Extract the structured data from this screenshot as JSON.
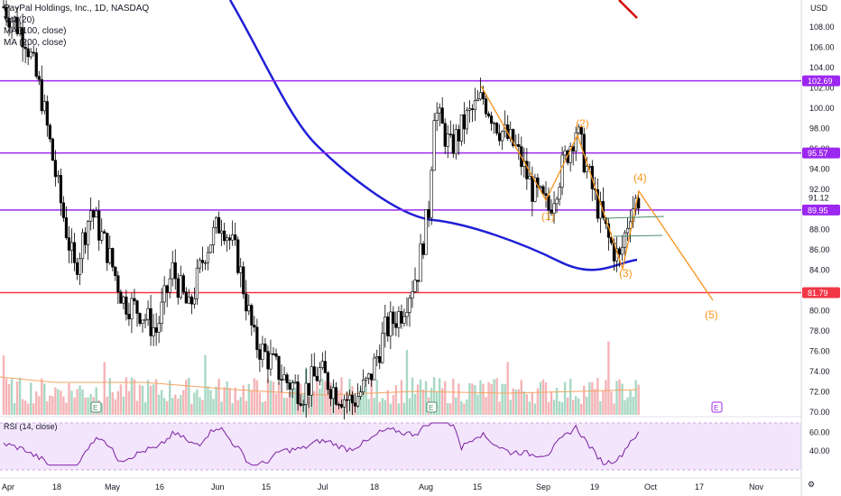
{
  "chart_data": {
    "type": "candlestick",
    "title": "PayPal Holdings, Inc., 1D, NASDAQ",
    "indicators": [
      "Vol (20)",
      "MA (100, close)",
      "MA (200, close)"
    ],
    "rsi_label": "RSI (14, close)",
    "currency_label": "USD",
    "y_range": [
      70,
      110
    ],
    "y_ticks": [
      "108.00",
      "106.00",
      "104.00",
      "102.00",
      "100.00",
      "98.00",
      "96.00",
      "94.00",
      "92.00",
      "90.00",
      "88.00",
      "86.00",
      "84.00",
      "82.00",
      "80.00",
      "78.00",
      "76.00",
      "74.00",
      "72.00",
      "70.00"
    ],
    "rsi_ticks": [
      "60.00",
      "40.00"
    ],
    "x_labels": [
      "Apr",
      "18",
      "May",
      "16",
      "Jun",
      "15",
      "Jul",
      "18",
      "Aug",
      "15",
      "Sep",
      "19",
      "Oct",
      "17",
      "Nov"
    ],
    "last_price": "91.12",
    "price_levels": [
      {
        "value": 102.69,
        "label": "102.69",
        "color": "#9c27f0"
      },
      {
        "value": 95.57,
        "label": "95.57",
        "color": "#9c27f0"
      },
      {
        "value": 89.95,
        "label": "89.95",
        "color": "#9c27f0"
      },
      {
        "value": 81.79,
        "label": "81.79",
        "color": "#f23645"
      }
    ],
    "wave_labels": [
      "(1)",
      "(2)",
      "(3)",
      "(4)",
      "(5)"
    ],
    "earnings_markers": [
      "E",
      "E",
      "E"
    ],
    "colors": {
      "up": "#ffffff",
      "down": "#000000",
      "ma": "#1f1fd6",
      "wave": "#f7931a",
      "rsi_line": "#7b1fa2",
      "rsi_bg": "#f3e5fc",
      "level": "#9c27f0",
      "support": "#f23645",
      "vol_up": "#a8d8c4",
      "vol_down": "#f4b4b7"
    }
  }
}
